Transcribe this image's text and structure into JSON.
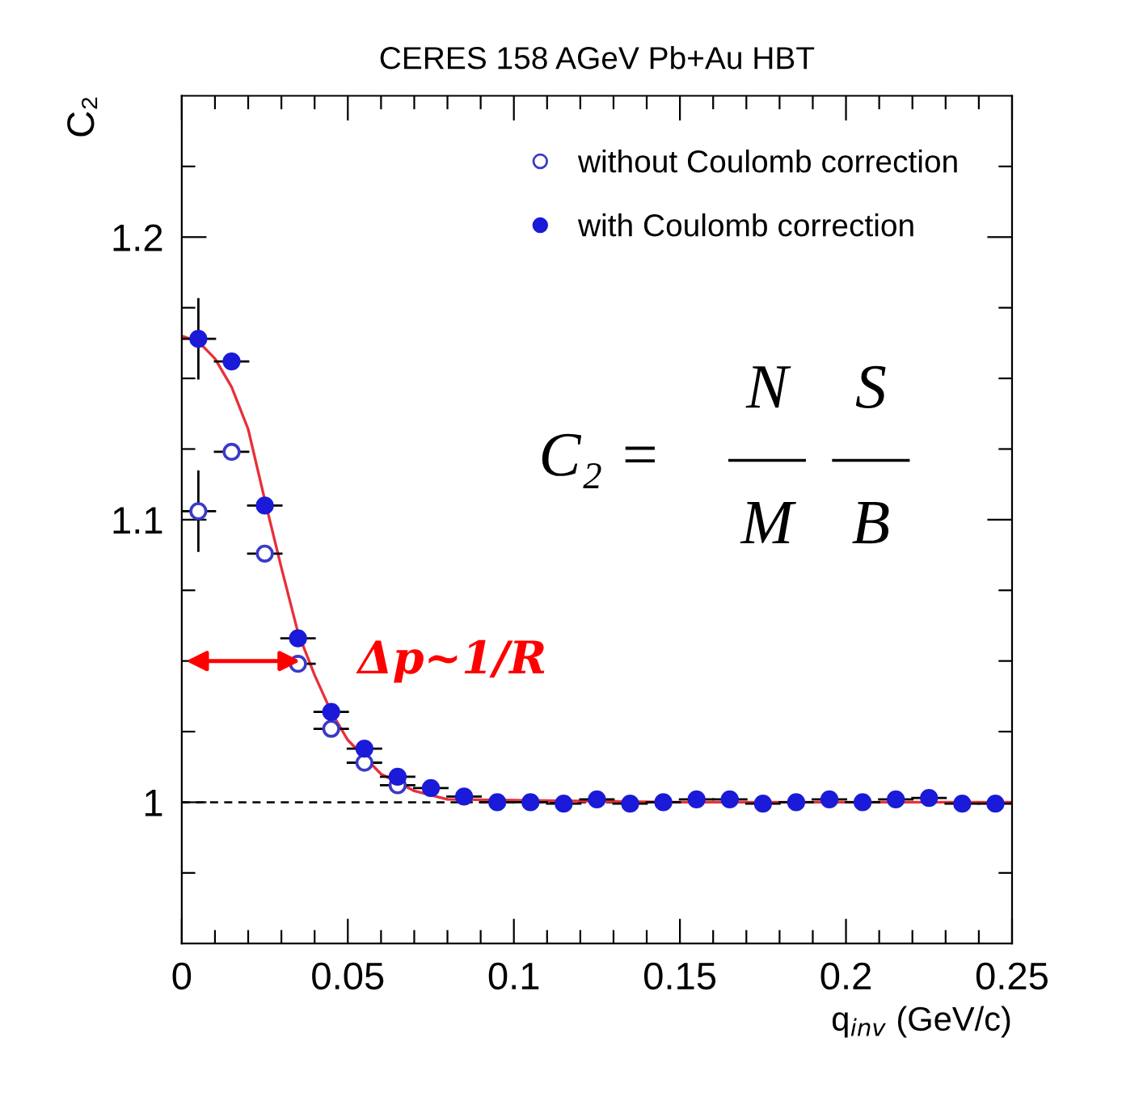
{
  "chart_data": {
    "type": "scatter",
    "title": "CERES 158 AGeV Pb+Au HBT",
    "xlabel": "q$_{inv}$ (GeV/c)",
    "ylabel": "C₂",
    "x": [
      0.005,
      0.015,
      0.025,
      0.035,
      0.045,
      0.055,
      0.065,
      0.075,
      0.085,
      0.095,
      0.105,
      0.115,
      0.125,
      0.135,
      0.145,
      0.155,
      0.165,
      0.175,
      0.185,
      0.195,
      0.205,
      0.215,
      0.225,
      0.235,
      0.245
    ],
    "series": [
      {
        "name": "without Coulomb correction",
        "marker": "open_circle",
        "color": "#3a3ac8",
        "values": [
          1.103,
          1.124,
          1.088,
          1.049,
          1.026,
          1.014,
          1.006,
          null,
          null,
          null,
          null,
          null,
          null,
          null,
          null,
          null,
          null,
          null,
          null,
          null,
          null,
          null,
          null,
          null,
          null
        ],
        "errors": [
          0.014,
          null,
          null,
          null,
          null,
          null,
          null,
          null,
          null,
          null,
          null,
          null,
          null,
          null,
          null,
          null,
          null,
          null,
          null,
          null,
          null,
          null,
          null,
          null,
          null
        ],
        "xerrors": [
          0.005,
          0.005,
          0.005,
          0.005,
          0.005,
          0.005,
          0.005,
          null,
          null,
          null,
          null,
          null,
          null,
          null,
          null,
          null,
          null,
          null,
          null,
          null,
          null,
          null,
          null,
          null,
          null
        ]
      },
      {
        "name": "with Coulomb correction",
        "marker": "circle",
        "color": "#1a1ad8",
        "values": [
          1.164,
          1.156,
          1.105,
          1.058,
          1.032,
          1.019,
          1.009,
          1.005,
          1.002,
          1.0,
          1.0,
          0.9995,
          1.001,
          0.9995,
          1.0,
          1.001,
          1.001,
          0.9995,
          1.0,
          1.001,
          1.0,
          1.001,
          1.0015,
          0.9995,
          0.9995
        ],
        "errors": [
          0.014,
          null,
          null,
          null,
          null,
          null,
          null,
          null,
          null,
          null,
          null,
          null,
          null,
          null,
          null,
          null,
          null,
          null,
          null,
          null,
          null,
          null,
          null,
          null,
          null
        ],
        "xerrors": [
          0.005,
          0.005,
          0.005,
          0.005,
          0.005,
          0.005,
          0.005,
          0.005,
          0.005,
          0.005,
          0.005,
          0.005,
          0.005,
          0.005,
          0.005,
          0.005,
          0.005,
          0.005,
          0.005,
          0.005,
          0.005,
          0.005,
          0.005,
          0.005,
          0.005
        ]
      },
      {
        "type": "line",
        "color": "#e8303a",
        "x": [
          0.0,
          0.005,
          0.01,
          0.015,
          0.02,
          0.025,
          0.03,
          0.035,
          0.04,
          0.045,
          0.05,
          0.06,
          0.07,
          0.08,
          0.15,
          0.2,
          0.25
        ],
        "values": [
          1.165,
          1.163,
          1.157,
          1.147,
          1.132,
          1.107,
          1.083,
          1.06,
          1.045,
          1.032,
          1.022,
          1.01,
          1.004,
          1.001,
          1.0,
          1.0,
          1.0
        ]
      }
    ],
    "xlim": [
      0,
      0.25
    ],
    "ylim": [
      0.95,
      1.25
    ],
    "xticks": [
      0,
      {
        "value": 0.01,
        "label": null
      },
      {
        "value": 0.02,
        "label": null
      },
      {
        "value": 0.03,
        "label": null
      },
      {
        "value": 0.04,
        "label": null
      },
      0.05,
      {
        "value": 0.06,
        "label": null
      },
      {
        "value": 0.07,
        "label": null
      },
      {
        "value": 0.08,
        "label": null
      },
      {
        "value": 0.09,
        "label": null
      },
      0.1,
      {
        "value": 0.11,
        "label": null
      },
      {
        "value": 0.12,
        "label": null
      },
      {
        "value": 0.13,
        "label": null
      },
      {
        "value": 0.14,
        "label": null
      },
      0.15,
      {
        "value": 0.16,
        "label": null
      },
      {
        "value": 0.17,
        "label": null
      },
      {
        "value": 0.18,
        "label": null
      },
      {
        "value": 0.19,
        "label": null
      },
      0.2,
      {
        "value": 0.21,
        "label": null
      },
      {
        "value": 0.22,
        "label": null
      },
      {
        "value": 0.23,
        "label": null
      },
      {
        "value": 0.24,
        "label": null
      },
      0.25
    ],
    "yticks": [
      {
        "value": 0.975,
        "label": null
      },
      1,
      {
        "value": 1.025,
        "label": null
      },
      {
        "value": 1.05,
        "label": null
      },
      {
        "value": 1.075,
        "label": null
      },
      1.1,
      {
        "value": 1.125,
        "label": null
      },
      {
        "value": 1.15,
        "label": null
      },
      {
        "value": 1.175,
        "label": null
      },
      1.2,
      {
        "value": 1.225,
        "label": null
      }
    ],
    "ref_lines": [
      {
        "axis": "y",
        "value": 1,
        "color": "#000000",
        "line_style": "dashed"
      }
    ],
    "annotations": [
      {
        "text": "Δp~1/R",
        "x": 0.037,
        "y": 1.05
      },
      "C₂ =",
      "N",
      "M",
      "S",
      "B"
    ],
    "legend": "top right",
    "grid": false
  }
}
